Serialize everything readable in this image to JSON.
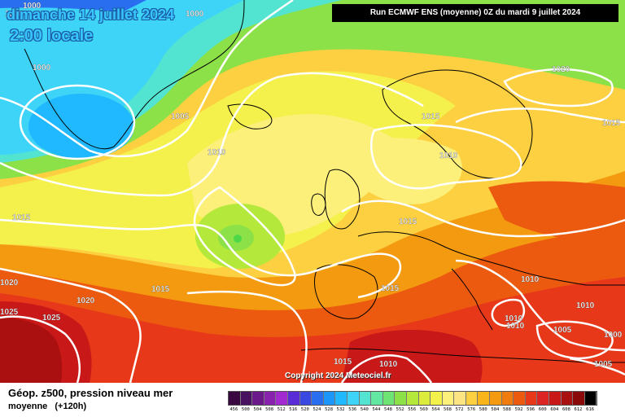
{
  "title": {
    "date": "dimanche 14 juillet 2024",
    "time": "2:00 locale"
  },
  "run_info": "Run ECMWF ENS (moyenne) 0Z du mardi 9 juillet 2024",
  "copyright": "Copyright 2024 Meteociel.fr",
  "legend": {
    "title": "Géop. z500, pression niveau mer",
    "subtitle": "moyenne",
    "forecast_hour": "(+120h)",
    "levels": [
      "456",
      "500",
      "504",
      "508",
      "512",
      "516",
      "520",
      "524",
      "528",
      "532",
      "536",
      "540",
      "544",
      "548",
      "552",
      "556",
      "560",
      "564",
      "568",
      "572",
      "576",
      "580",
      "584",
      "588",
      "592",
      "596",
      "600",
      "604",
      "608",
      "612",
      "616"
    ],
    "colors": [
      "#3a0840",
      "#4a1060",
      "#6a188a",
      "#8a22b0",
      "#a22ad0",
      "#5a2cd8",
      "#3848e0",
      "#2a6ef0",
      "#1c96f8",
      "#20b8ff",
      "#3ed4f8",
      "#52e4d0",
      "#62e8a0",
      "#6ee474",
      "#8ce048",
      "#b4e83a",
      "#dcec3c",
      "#f4f04c",
      "#fcf07a",
      "#fce482",
      "#fcd040",
      "#f8b418",
      "#f49a10",
      "#f07c10",
      "#ec5a10",
      "#e8381a",
      "#dc2424",
      "#c81818",
      "#aa1010",
      "#8a0a0a",
      "#000000"
    ]
  },
  "isobar_labels": [
    {
      "id": "iso-1000-a",
      "text": "1000"
    },
    {
      "id": "iso-1000-b",
      "text": "1000"
    },
    {
      "id": "iso-1000-c",
      "text": "1000"
    },
    {
      "id": "iso-1000-d",
      "text": "1000"
    },
    {
      "id": "iso-1005-a",
      "text": "1005"
    },
    {
      "id": "iso-1010-a",
      "text": "1010"
    },
    {
      "id": "iso-1015-a",
      "text": "1015"
    },
    {
      "id": "iso-1020-a",
      "text": "1020"
    },
    {
      "id": "iso-1015-b",
      "text": "1015"
    },
    {
      "id": "iso-1010-b",
      "text": "1010"
    },
    {
      "id": "iso-1015-c",
      "text": "1015"
    },
    {
      "id": "iso-1015-d",
      "text": "1015"
    },
    {
      "id": "iso-1020-b",
      "text": "1020"
    },
    {
      "id": "iso-1025-a",
      "text": "1025"
    },
    {
      "id": "iso-1025-b",
      "text": "1025"
    },
    {
      "id": "iso-1020-c",
      "text": "1020"
    },
    {
      "id": "iso-1015-e",
      "text": "1015"
    },
    {
      "id": "iso-1015-f",
      "text": "1015"
    },
    {
      "id": "iso-1015-g",
      "text": "1015"
    },
    {
      "id": "iso-1010-c",
      "text": "1010"
    },
    {
      "id": "iso-1010-d",
      "text": "1010"
    },
    {
      "id": "iso-1010-e",
      "text": "1010"
    },
    {
      "id": "iso-1010-f",
      "text": "1010"
    },
    {
      "id": "iso-1005-b",
      "text": "1005"
    },
    {
      "id": "iso-1000-e",
      "text": "1000"
    },
    {
      "id": "iso-1005-c",
      "text": "1005"
    },
    {
      "id": "iso-1010-g",
      "text": "1010"
    }
  ]
}
